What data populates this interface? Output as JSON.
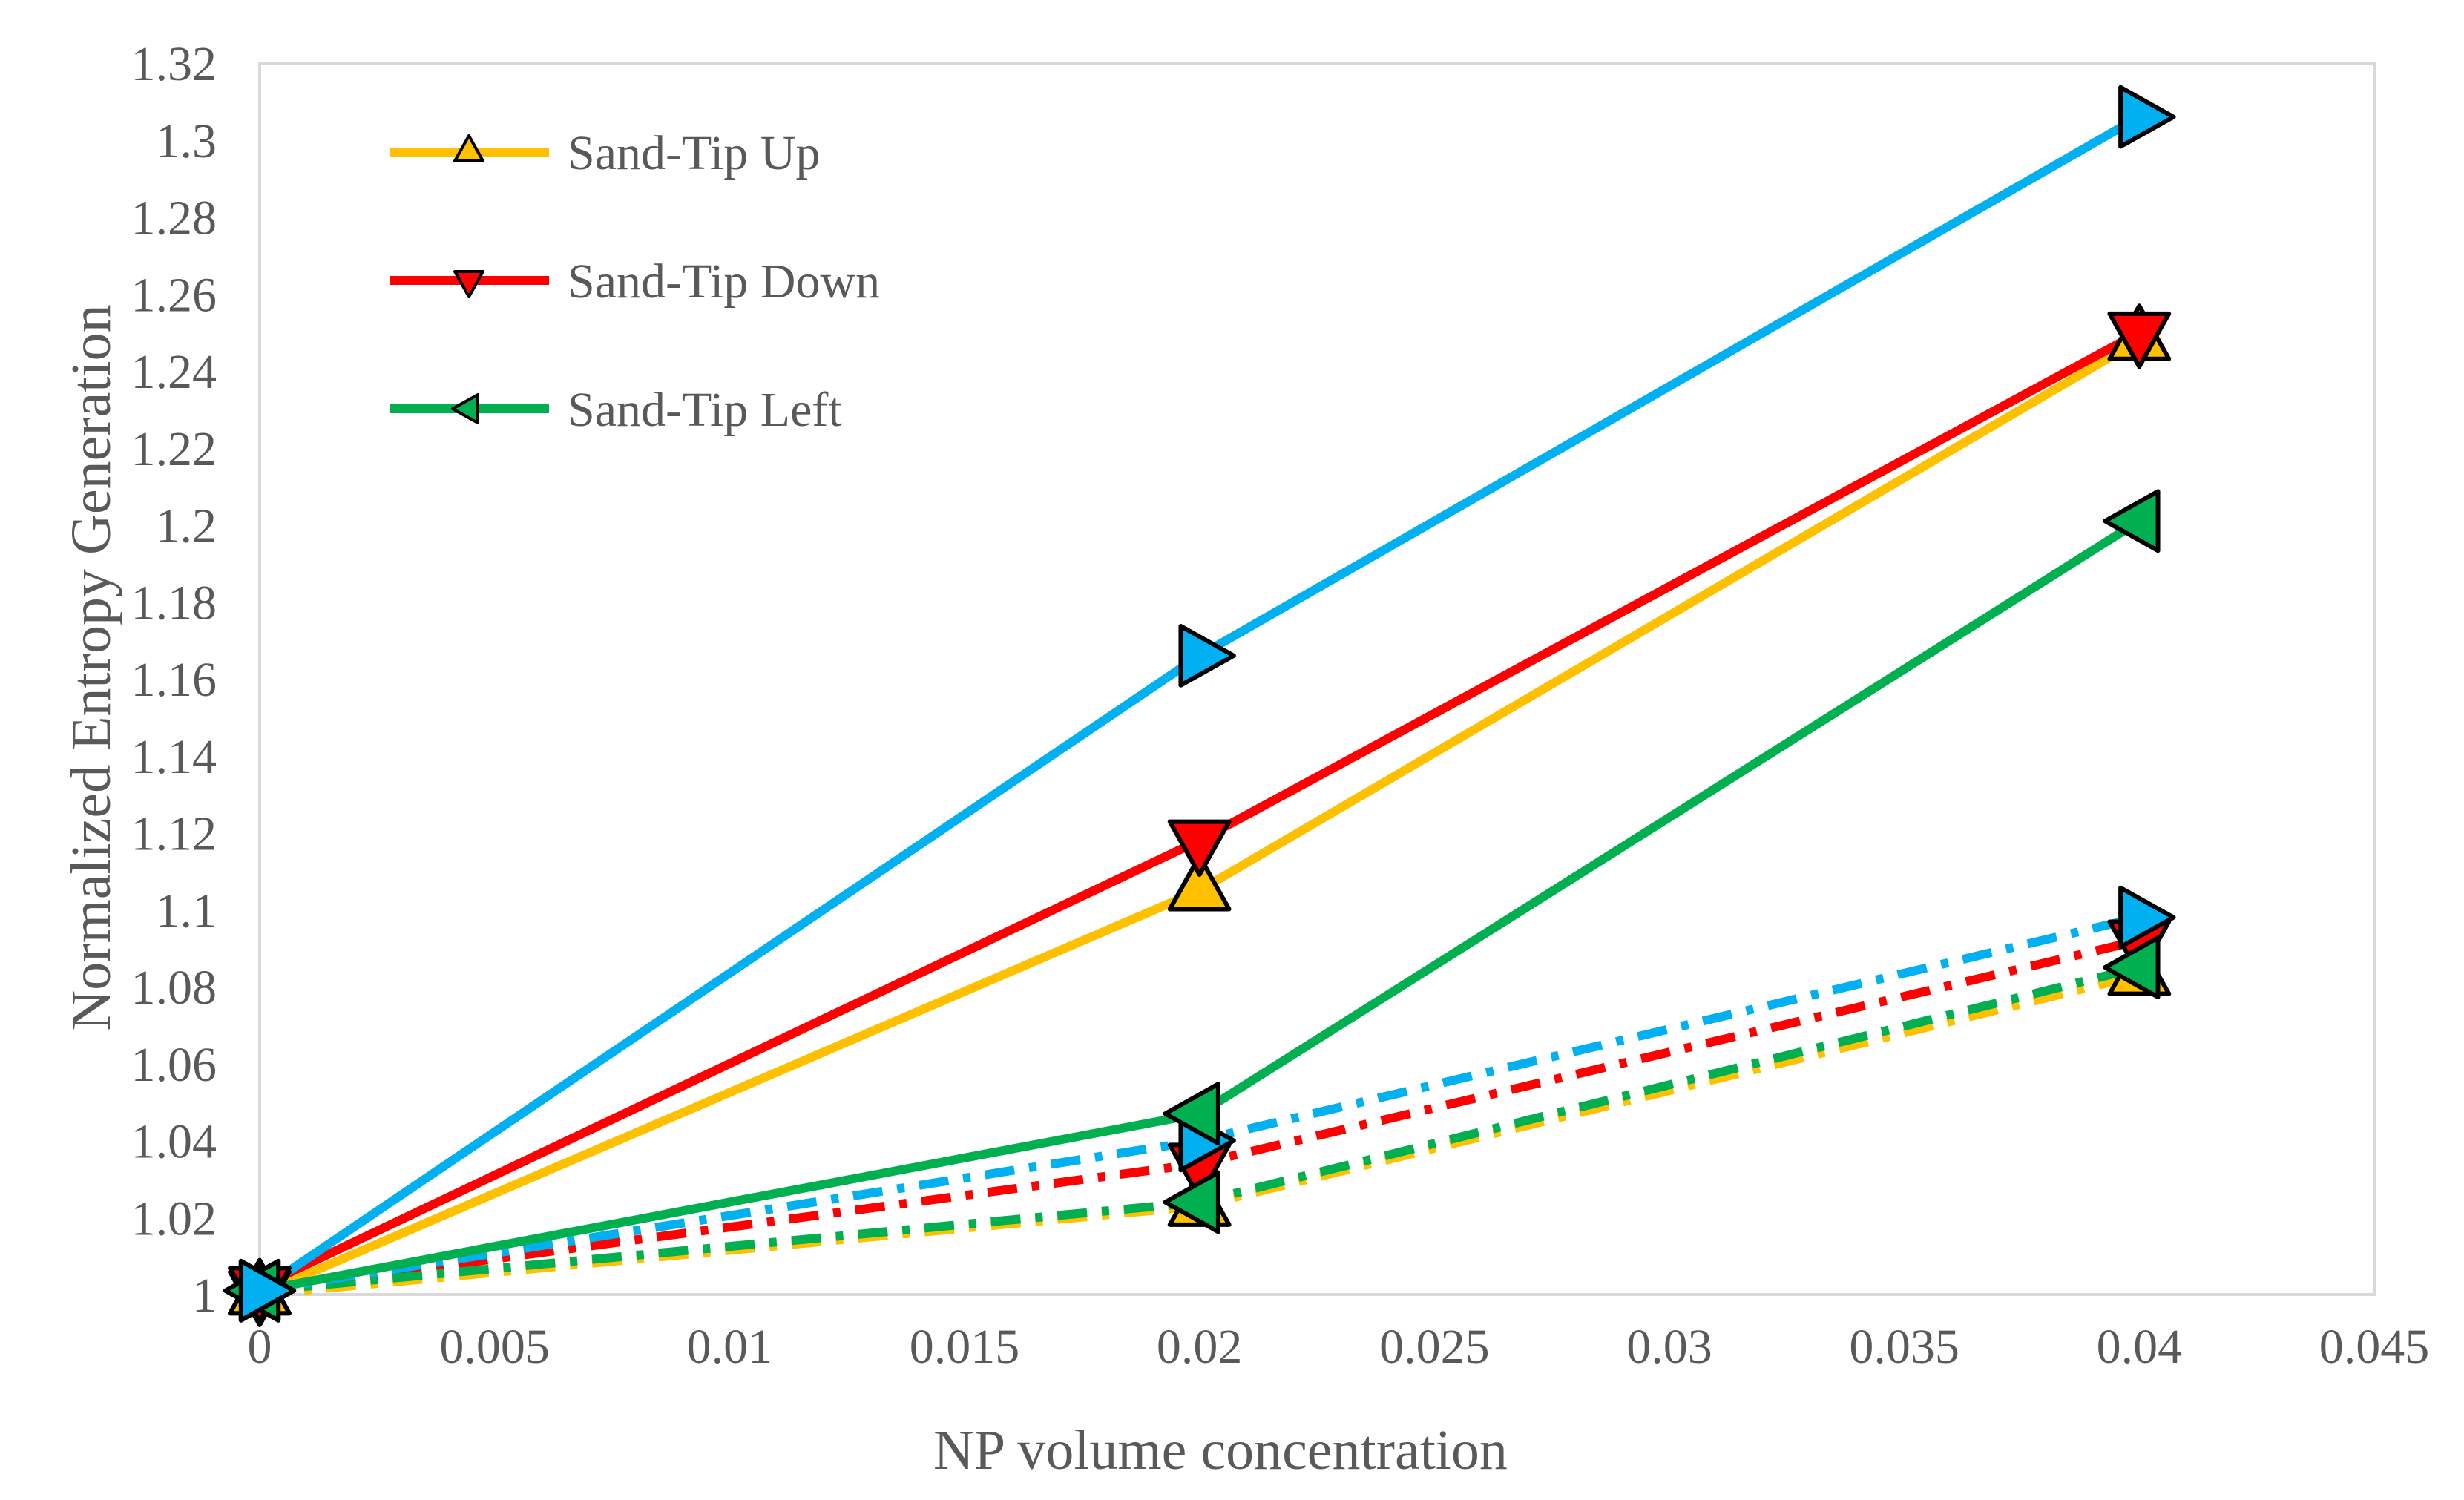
{
  "chart_data": {
    "type": "line",
    "title": "",
    "xlabel": "NP volume concentration",
    "ylabel": "Normalized Entropy Generation",
    "xlim": [
      0,
      0.045
    ],
    "ylim": [
      1,
      1.32
    ],
    "x_ticks": [
      "0",
      "0.005",
      "0.01",
      "0.015",
      "0.02",
      "0.025",
      "0.03",
      "0.035",
      "0.04",
      "0.045"
    ],
    "y_ticks": [
      "1",
      "1.02",
      "1.04",
      "1.06",
      "1.08",
      "1.1",
      "1.12",
      "1.14",
      "1.16",
      "1.18",
      "1.2",
      "1.22",
      "1.24",
      "1.26",
      "1.28",
      "1.3",
      "1.32"
    ],
    "grid": false,
    "legend_position": "top-left",
    "legend": [
      "Sand-Tip Up",
      "Sand-Tip Down",
      "Sand-Tip Left"
    ],
    "x": [
      0,
      0.02,
      0.04
    ],
    "series": [
      {
        "name": "Sand-Tip Up",
        "color": "#FFC000",
        "style": "solid",
        "marker": "triangle-up",
        "values": [
          1.0,
          1.105,
          1.248
        ]
      },
      {
        "name": "Sand-Tip Down",
        "color": "#FF0000",
        "style": "solid",
        "marker": "triangle-down",
        "values": [
          1.002,
          1.118,
          1.25
        ]
      },
      {
        "name": "Sand-Tip Left",
        "color": "#00B050",
        "style": "solid",
        "marker": "triangle-left",
        "values": [
          1.001,
          1.047,
          1.201
        ]
      },
      {
        "color": "#00B0F0",
        "style": "solid",
        "marker": "triangle-right",
        "values": [
          1.001,
          1.166,
          1.306
        ]
      },
      {
        "color": "#FFC000",
        "style": "dashdot",
        "marker": "triangle-up",
        "values": [
          1.0,
          1.023,
          1.083
        ]
      },
      {
        "color": "#FF0000",
        "style": "dashdot",
        "marker": "triangle-down",
        "values": [
          1.001,
          1.034,
          1.092
        ]
      },
      {
        "color": "#00B050",
        "style": "dashdot",
        "marker": "triangle-left",
        "values": [
          1.001,
          1.024,
          1.085
        ]
      },
      {
        "color": "#00B0F0",
        "style": "dashdot",
        "marker": "triangle-right",
        "values": [
          1.001,
          1.04,
          1.098
        ]
      }
    ]
  }
}
